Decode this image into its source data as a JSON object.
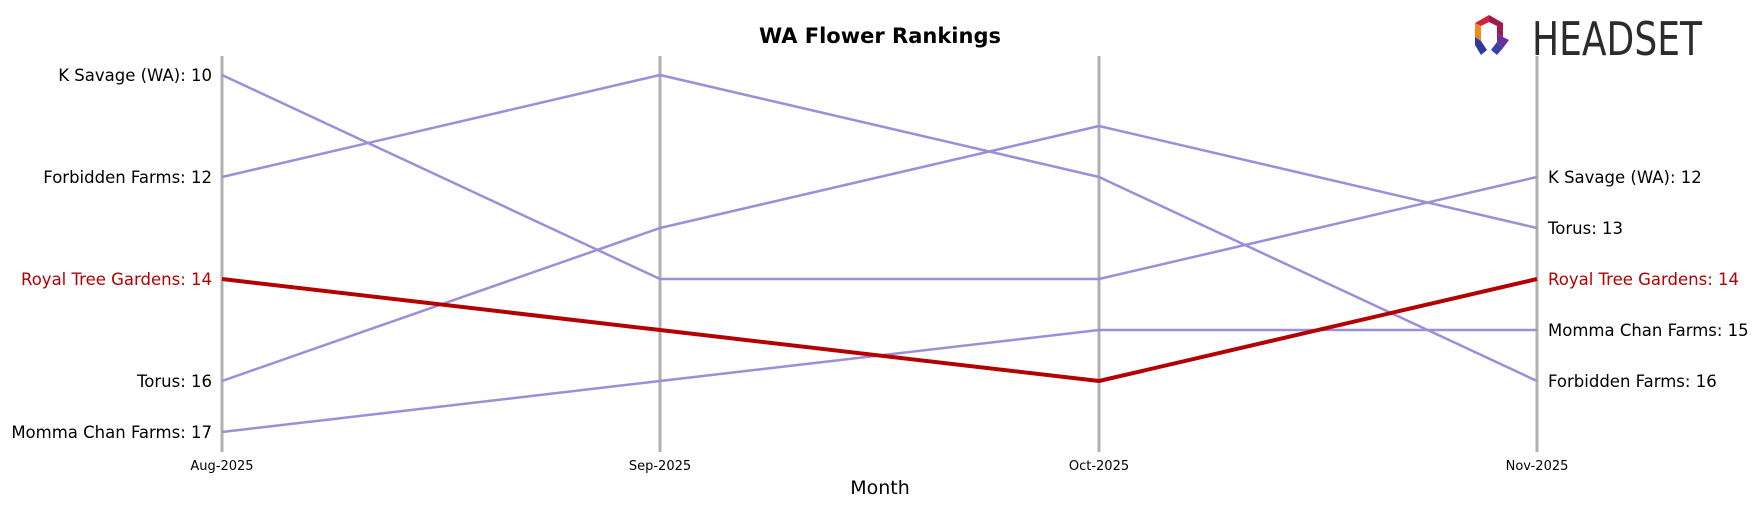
{
  "chart_data": {
    "type": "line",
    "title": "WA Flower Rankings",
    "xlabel": "Month",
    "ylabel": "",
    "x": [
      "Aug-2025",
      "Sep-2025",
      "Oct-2025",
      "Nov-2025"
    ],
    "ylim": [
      17,
      10
    ],
    "y_inverted": true,
    "grid": "vertical lines at each month",
    "highlight": "Royal Tree Gardens",
    "series": [
      {
        "name": "K Savage (WA)",
        "values": [
          10,
          14,
          14,
          12
        ]
      },
      {
        "name": "Forbidden Farms",
        "values": [
          12,
          10,
          12,
          16
        ]
      },
      {
        "name": "Royal Tree Gardens",
        "values": [
          14,
          15,
          16,
          14
        ]
      },
      {
        "name": "Torus",
        "values": [
          16,
          13,
          11,
          13
        ]
      },
      {
        "name": "Momma Chan Farms",
        "values": [
          17,
          16,
          15,
          15
        ]
      }
    ],
    "left_labels": [
      "K Savage (WA): 10",
      "Forbidden Farms: 12",
      "Royal Tree Gardens: 14",
      "Torus: 16",
      "Momma Chan Farms: 17"
    ],
    "right_labels": [
      "K Savage (WA): 12",
      "Torus: 13",
      "Royal Tree Gardens: 14",
      "Momma Chan Farms: 15",
      "Forbidden Farms: 16"
    ]
  },
  "logo": {
    "text": "HEADSET"
  },
  "colors": {
    "highlight": "#b30000",
    "other": "#9b8fd9",
    "gridline": "#b0b0b0",
    "text": "#000000"
  }
}
